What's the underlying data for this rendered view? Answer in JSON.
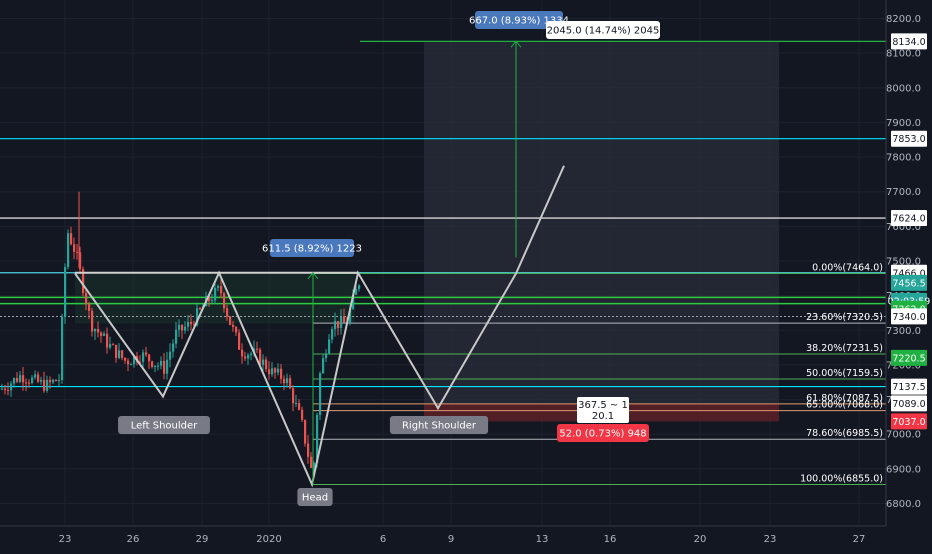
{
  "chart_data": {
    "type": "candlestick",
    "ylim": [
      6740,
      8250
    ],
    "x_ticks": [
      "23",
      "26",
      "29",
      "2020",
      "6",
      "9",
      "13",
      "16",
      "20",
      "23",
      "27"
    ],
    "y_ticks": [
      6800,
      6900,
      7000,
      7100,
      7200,
      7300,
      7400,
      7500,
      7600,
      7700,
      7800,
      7900,
      8000,
      8100,
      8200
    ],
    "y_tick_labels": [
      "6800.0",
      "6900.0",
      "7000.0",
      "7100.0",
      "7200.0",
      "7300.0",
      "7400.0",
      "7500.0",
      "7600.0",
      "7700.0",
      "7800.0",
      "7900.0",
      "8000.0",
      "8100.0",
      "8200.0"
    ],
    "horizontal_lines": [
      {
        "price": 8134.0,
        "color": "#1fb141",
        "label": "8134.0"
      },
      {
        "price": 7853.0,
        "color": "#00e5ff",
        "label": "7853.0"
      },
      {
        "price": 7624.0,
        "color": "#ffffff",
        "label": "7624.0"
      },
      {
        "price": 7466.0,
        "color": "#4dd0e1",
        "label": "7466.0"
      },
      {
        "price": 7137.5,
        "color": "#00e5ff",
        "label": "7137.5"
      }
    ],
    "price_tags": [
      {
        "price": 8134.0,
        "text": "8134.0",
        "bg": "#ffffff",
        "fg": "#131722"
      },
      {
        "price": 7853.0,
        "text": "7853.0",
        "bg": "#ffffff",
        "fg": "#131722"
      },
      {
        "price": 7624.0,
        "text": "7624.0",
        "bg": "#ffffff",
        "fg": "#131722"
      },
      {
        "price": 7466.0,
        "text": "7466.0",
        "bg": "#ffffff",
        "fg": "#131722"
      },
      {
        "price": 7437.0,
        "text": "7456.5",
        "bg": "#26a69a",
        "fg": "#ffffff"
      },
      {
        "price": 7385.0,
        "text": "02:03:59",
        "bg": "#26a69a",
        "fg": "#ffffff"
      },
      {
        "price": 7362.0,
        "text": "7362.0",
        "bg": "#1fb141",
        "fg": "#ffffff"
      },
      {
        "price": 7340.0,
        "text": "7340.0",
        "bg": "#ffffff",
        "fg": "#131722"
      },
      {
        "price": 7220.5,
        "text": "7220.5",
        "bg": "#1fb141",
        "fg": "#ffffff"
      },
      {
        "price": 7137.5,
        "text": "7137.5",
        "bg": "#ffffff",
        "fg": "#131722"
      },
      {
        "price": 7089.0,
        "text": "7089.0",
        "bg": "#ffffff",
        "fg": "#131722"
      },
      {
        "price": 7037.0,
        "text": "7037.0",
        "bg": "#f23645",
        "fg": "#ffffff"
      }
    ],
    "fib_levels": [
      {
        "label": "0.00%(7464.0)",
        "price": 7464.0,
        "color": "#4caf50"
      },
      {
        "label": "23.60%(7320.5)",
        "price": 7320.5,
        "color": "#b2b5be"
      },
      {
        "label": "38.20%(7231.5)",
        "price": 7231.5,
        "color": "#4caf50"
      },
      {
        "label": "50.00%(7159.5)",
        "price": 7159.5,
        "color": "#4caf50"
      },
      {
        "label": "61.80%(7087.5)",
        "price": 7087.5,
        "color": "#e09a6d"
      },
      {
        "label": "65.00%(7068.0)",
        "price": 7068.0,
        "color": "#e09a6d"
      },
      {
        "label": "78.60%(6985.5)",
        "price": 6985.5,
        "color": "#b2b5be"
      },
      {
        "label": "100.00%(6855.0)",
        "price": 6855.0,
        "color": "#4caf50"
      }
    ],
    "extra_lines": [
      {
        "price": 7395,
        "color": "#2ecc40"
      },
      {
        "price": 7377,
        "color": "#2ecc40"
      }
    ],
    "pattern_labels": [
      "Left Shoulder",
      "Head",
      "Right Shoulder"
    ],
    "measure_labels": [
      {
        "text": "611.5 (8.92%) 1223",
        "bg": "#4a78bd",
        "fg": "#ffffff"
      },
      {
        "text": "667.0 (8.93%) 1334",
        "bg": "#4a78bd",
        "fg": "#ffffff"
      }
    ],
    "position_labels": {
      "target": "2045.0 (14.74%) 2045",
      "ratio_line1": "367.5 ~ 1",
      "ratio_line2": "20.1",
      "stop": "52.0 (0.73%) 948"
    },
    "colors": {
      "up": "#26a69a",
      "down": "#ef5350",
      "background": "#131722"
    }
  }
}
